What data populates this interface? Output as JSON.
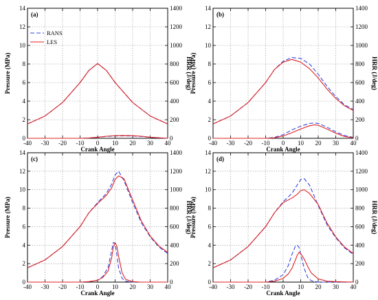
{
  "chart_data": [
    {
      "type": "line",
      "panel_label": "(a)",
      "xlabel": "Crank Angle",
      "ylabel": "Pressure (MPa)",
      "y2label": "HRR (J/deg)",
      "xlim": [
        -40,
        40
      ],
      "ylim": [
        0,
        14
      ],
      "y2lim": [
        0,
        1400
      ],
      "xticks": [
        "-40",
        "-30",
        "-20",
        "-10",
        "0",
        "10",
        "20",
        "30",
        "40"
      ],
      "yticks": [
        "0",
        "2",
        "4",
        "6",
        "8",
        "10",
        "12",
        "14"
      ],
      "y2ticks": [
        "0",
        "200",
        "400",
        "600",
        "800",
        "1000",
        "1200",
        "1400"
      ],
      "grid": true,
      "legend": {
        "position": "top-left",
        "entries": [
          {
            "name": "RANS",
            "color": "#3344dd",
            "style": "dashed"
          },
          {
            "name": "LES",
            "color": "#dd2222",
            "style": "solid"
          }
        ]
      },
      "series": [
        {
          "name": "RANS",
          "axis": "left",
          "color": "#3344dd",
          "style": "dashed",
          "x": [
            -40,
            -30,
            -20,
            -10,
            -5,
            0,
            5,
            10,
            20,
            30,
            40
          ],
          "y": [
            1.55,
            2.4,
            3.85,
            6.0,
            7.3,
            8.05,
            7.3,
            6.0,
            3.85,
            2.4,
            1.55
          ]
        },
        {
          "name": "LES",
          "axis": "left",
          "color": "#dd2222",
          "style": "solid",
          "x": [
            -40,
            -30,
            -20,
            -10,
            -5,
            0,
            5,
            10,
            20,
            30,
            40
          ],
          "y": [
            1.55,
            2.4,
            3.85,
            6.0,
            7.3,
            8.05,
            7.3,
            6.0,
            3.85,
            2.4,
            1.55
          ]
        },
        {
          "name": "RANS",
          "axis": "right",
          "color": "#3344dd",
          "style": "dashed",
          "x": [
            -40,
            -10,
            -5,
            0,
            5,
            10,
            15,
            20,
            25,
            30,
            40
          ],
          "y": [
            0,
            0,
            3,
            12,
            20,
            25,
            26,
            25,
            20,
            10,
            0
          ]
        },
        {
          "name": "LES",
          "axis": "right",
          "color": "#dd2222",
          "style": "solid",
          "x": [
            -40,
            -10,
            -5,
            0,
            5,
            10,
            15,
            20,
            25,
            30,
            40
          ],
          "y": [
            0,
            0,
            3,
            12,
            22,
            28,
            30,
            28,
            22,
            12,
            0
          ]
        }
      ]
    },
    {
      "type": "line",
      "panel_label": "(b)",
      "xlabel": "Crank Angle",
      "ylabel": "Pressure (MPa)",
      "y2label": "HRR (J/deg)",
      "xlim": [
        -40,
        40
      ],
      "ylim": [
        0,
        14
      ],
      "y2lim": [
        0,
        1400
      ],
      "xticks": [
        "-40",
        "-30",
        "-20",
        "-10",
        "0",
        "10",
        "20",
        "30",
        "40"
      ],
      "yticks": [
        "0",
        "2",
        "4",
        "6",
        "8",
        "10",
        "12",
        "14"
      ],
      "y2ticks": [
        "0",
        "200",
        "400",
        "600",
        "800",
        "1000",
        "1200",
        "1400"
      ],
      "grid": true,
      "series": [
        {
          "name": "RANS",
          "axis": "left",
          "color": "#3344dd",
          "style": "dashed",
          "x": [
            -40,
            -30,
            -20,
            -10,
            -5,
            0,
            5,
            10,
            15,
            20,
            25,
            30,
            35,
            40
          ],
          "y": [
            1.55,
            2.4,
            3.85,
            6.0,
            7.4,
            8.3,
            8.7,
            8.6,
            8.0,
            6.9,
            5.6,
            4.5,
            3.6,
            3.1
          ]
        },
        {
          "name": "LES",
          "axis": "left",
          "color": "#dd2222",
          "style": "solid",
          "x": [
            -40,
            -30,
            -20,
            -10,
            -5,
            0,
            5,
            10,
            15,
            20,
            25,
            30,
            35,
            40
          ],
          "y": [
            1.55,
            2.4,
            3.85,
            6.0,
            7.4,
            8.2,
            8.5,
            8.2,
            7.5,
            6.5,
            5.3,
            4.3,
            3.5,
            3.0
          ]
        },
        {
          "name": "RANS",
          "axis": "right",
          "color": "#3344dd",
          "style": "dashed",
          "x": [
            -40,
            -10,
            -5,
            0,
            5,
            10,
            15,
            18,
            20,
            25,
            30,
            35,
            40
          ],
          "y": [
            0,
            0,
            10,
            40,
            90,
            130,
            160,
            165,
            160,
            120,
            70,
            30,
            10
          ]
        },
        {
          "name": "LES",
          "axis": "right",
          "color": "#dd2222",
          "style": "solid",
          "x": [
            -40,
            -10,
            -5,
            0,
            5,
            10,
            15,
            18,
            20,
            25,
            30,
            35,
            40
          ],
          "y": [
            0,
            0,
            5,
            25,
            60,
            100,
            135,
            145,
            140,
            100,
            55,
            20,
            5
          ]
        }
      ]
    },
    {
      "type": "line",
      "panel_label": "(c)",
      "xlabel": "Crank Angle",
      "ylabel": "Pressure (MPa)",
      "y2label": "HRR (J/deg)",
      "xlim": [
        -40,
        40
      ],
      "ylim": [
        0,
        14
      ],
      "y2lim": [
        0,
        1400
      ],
      "xticks": [
        "-40",
        "-30",
        "-20",
        "-10",
        "0",
        "10",
        "20",
        "30",
        "40"
      ],
      "yticks": [
        "0",
        "2",
        "4",
        "6",
        "8",
        "10",
        "12",
        "14"
      ],
      "y2ticks": [
        "0",
        "200",
        "400",
        "600",
        "800",
        "1000",
        "1200",
        "1400"
      ],
      "grid": true,
      "series": [
        {
          "name": "RANS",
          "axis": "left",
          "color": "#3344dd",
          "style": "dashed",
          "x": [
            -40,
            -30,
            -20,
            -10,
            -5,
            0,
            5,
            8,
            10,
            12,
            15,
            20,
            25,
            30,
            35,
            40
          ],
          "y": [
            1.55,
            2.4,
            3.85,
            6.0,
            7.5,
            8.6,
            9.6,
            10.6,
            11.6,
            12.0,
            11.0,
            8.6,
            6.4,
            4.9,
            3.8,
            3.1
          ]
        },
        {
          "name": "LES",
          "axis": "left",
          "color": "#dd2222",
          "style": "solid",
          "x": [
            -40,
            -30,
            -20,
            -10,
            -5,
            0,
            5,
            8,
            10,
            12,
            15,
            20,
            25,
            30,
            35,
            40
          ],
          "y": [
            1.55,
            2.4,
            3.85,
            6.0,
            7.5,
            8.5,
            9.4,
            10.2,
            11.1,
            11.5,
            11.2,
            8.9,
            6.6,
            5.0,
            3.9,
            3.2
          ]
        },
        {
          "name": "RANS",
          "axis": "right",
          "color": "#3344dd",
          "style": "dashed",
          "x": [
            -40,
            -10,
            -5,
            0,
            3,
            6,
            8,
            9,
            10,
            11,
            12,
            14,
            16,
            20,
            25,
            40
          ],
          "y": [
            0,
            0,
            5,
            20,
            60,
            160,
            340,
            430,
            420,
            300,
            150,
            40,
            10,
            0,
            0,
            0
          ]
        },
        {
          "name": "LES",
          "axis": "right",
          "color": "#dd2222",
          "style": "solid",
          "x": [
            -40,
            -10,
            -5,
            0,
            3,
            6,
            8,
            9,
            10,
            11,
            12,
            14,
            16,
            20,
            25,
            40
          ],
          "y": [
            0,
            0,
            5,
            20,
            50,
            120,
            260,
            380,
            425,
            390,
            280,
            100,
            30,
            5,
            0,
            0
          ]
        }
      ]
    },
    {
      "type": "line",
      "panel_label": "(d)",
      "xlabel": "Crank Angle",
      "ylabel": "Pressure (MPa)",
      "y2label": "HRR (J/deg)",
      "xlim": [
        -40,
        40
      ],
      "ylim": [
        0,
        14
      ],
      "y2lim": [
        0,
        1400
      ],
      "xticks": [
        "-40",
        "-30",
        "-20",
        "-10",
        "0",
        "10",
        "20",
        "30",
        "40"
      ],
      "yticks": [
        "0",
        "2",
        "4",
        "6",
        "8",
        "10",
        "12",
        "14"
      ],
      "y2ticks": [
        "0",
        "200",
        "400",
        "600",
        "800",
        "1000",
        "1200",
        "1400"
      ],
      "grid": true,
      "series": [
        {
          "name": "RANS",
          "axis": "left",
          "color": "#3344dd",
          "style": "dashed",
          "x": [
            -40,
            -30,
            -20,
            -10,
            -5,
            0,
            5,
            8,
            10,
            12,
            15,
            20,
            25,
            30,
            35,
            40
          ],
          "y": [
            1.55,
            2.4,
            3.85,
            6.0,
            7.5,
            8.7,
            9.6,
            10.5,
            11.1,
            11.2,
            10.5,
            8.3,
            6.2,
            4.8,
            3.7,
            3.0
          ]
        },
        {
          "name": "LES",
          "axis": "left",
          "color": "#dd2222",
          "style": "solid",
          "x": [
            -40,
            -30,
            -20,
            -10,
            -5,
            0,
            5,
            8,
            10,
            12,
            15,
            20,
            25,
            30,
            35,
            40
          ],
          "y": [
            1.55,
            2.4,
            3.85,
            6.0,
            7.5,
            8.6,
            9.1,
            9.5,
            9.9,
            10.0,
            9.6,
            8.4,
            6.4,
            4.9,
            3.8,
            3.1
          ]
        },
        {
          "name": "RANS",
          "axis": "right",
          "color": "#3344dd",
          "style": "dashed",
          "x": [
            -40,
            -10,
            -5,
            0,
            3,
            5,
            7,
            8,
            9,
            10,
            12,
            14,
            16,
            20,
            25,
            40
          ],
          "y": [
            0,
            0,
            20,
            80,
            180,
            300,
            390,
            400,
            380,
            300,
            150,
            50,
            15,
            0,
            0,
            0
          ]
        },
        {
          "name": "LES",
          "axis": "right",
          "color": "#dd2222",
          "style": "solid",
          "x": [
            -40,
            -10,
            -5,
            0,
            3,
            5,
            7,
            8,
            9,
            10,
            12,
            14,
            16,
            20,
            25,
            30,
            40
          ],
          "y": [
            0,
            0,
            10,
            40,
            90,
            150,
            240,
            290,
            320,
            310,
            250,
            170,
            100,
            35,
            10,
            5,
            0
          ]
        }
      ]
    }
  ]
}
